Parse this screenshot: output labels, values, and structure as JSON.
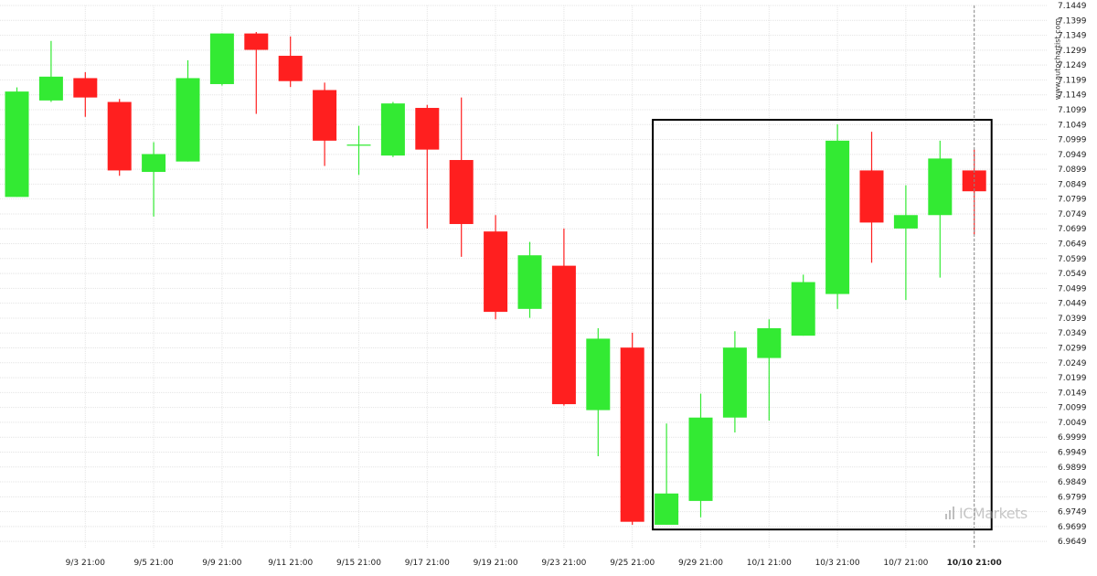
{
  "watermark": "www.autochartist.com",
  "logo_text": "ICMarkets",
  "colors": {
    "bull": "#33ea33",
    "bear": "#ff1f1f",
    "grid": "#e4e4e4",
    "box": "#000000"
  },
  "chart_data": {
    "type": "candlestick",
    "title": "",
    "xlabel": "",
    "ylabel": "",
    "ylim": [
      6.9625,
      7.1449
    ],
    "grid": true,
    "y_ticks": [
      "7.1449",
      "7.1399",
      "7.1349",
      "7.1299",
      "7.1249",
      "7.1199",
      "7.1149",
      "7.1099",
      "7.1049",
      "7.0999",
      "7.0949",
      "7.0899",
      "7.0849",
      "7.0799",
      "7.0749",
      "7.0699",
      "7.0649",
      "7.0599",
      "7.0549",
      "7.0499",
      "7.0449",
      "7.0399",
      "7.0349",
      "7.0299",
      "7.0249",
      "7.0199",
      "7.0149",
      "7.0099",
      "7.0049",
      "6.9999",
      "6.9949",
      "6.9899",
      "6.9849",
      "6.9799",
      "6.9749",
      "6.9699",
      "6.9649"
    ],
    "x_ticks": [
      {
        "label": "9/3 21:00",
        "index": 2
      },
      {
        "label": "9/5 21:00",
        "index": 4
      },
      {
        "label": "9/9 21:00",
        "index": 6
      },
      {
        "label": "9/11 21:00",
        "index": 8
      },
      {
        "label": "9/15 21:00",
        "index": 10
      },
      {
        "label": "9/17 21:00",
        "index": 12
      },
      {
        "label": "9/19 21:00",
        "index": 14
      },
      {
        "label": "9/23 21:00",
        "index": 16
      },
      {
        "label": "9/25 21:00",
        "index": 18
      },
      {
        "label": "9/29 21:00",
        "index": 20
      },
      {
        "label": "10/1 21:00",
        "index": 22
      },
      {
        "label": "10/3 21:00",
        "index": 24
      },
      {
        "label": "10/7 21:00",
        "index": 26
      },
      {
        "label": "10/10 21:00",
        "index": 28,
        "bold": true
      }
    ],
    "candles": [
      {
        "open": 7.0806,
        "high": 7.1174,
        "low": 7.0806,
        "close": 7.116
      },
      {
        "open": 7.113,
        "high": 7.133,
        "low": 7.1125,
        "close": 7.121
      },
      {
        "open": 7.1205,
        "high": 7.1225,
        "low": 7.1075,
        "close": 7.114
      },
      {
        "open": 7.1125,
        "high": 7.1135,
        "low": 7.0877,
        "close": 7.0895
      },
      {
        "open": 7.089,
        "high": 7.099,
        "low": 7.074,
        "close": 7.095
      },
      {
        "open": 7.0925,
        "high": 7.1265,
        "low": 7.0925,
        "close": 7.1205
      },
      {
        "open": 7.1185,
        "high": 7.1355,
        "low": 7.118,
        "close": 7.1355
      },
      {
        "open": 7.1355,
        "high": 7.136,
        "low": 7.1085,
        "close": 7.13
      },
      {
        "open": 7.128,
        "high": 7.1345,
        "low": 7.1175,
        "close": 7.1195
      },
      {
        "open": 7.1165,
        "high": 7.119,
        "low": 7.091,
        "close": 7.0995
      },
      {
        "open": 7.098,
        "high": 7.1045,
        "low": 7.088,
        "close": 7.098
      },
      {
        "open": 7.0945,
        "high": 7.1125,
        "low": 7.094,
        "close": 7.112
      },
      {
        "open": 7.1105,
        "high": 7.1115,
        "low": 7.07,
        "close": 7.0965
      },
      {
        "open": 7.093,
        "high": 7.114,
        "low": 7.0605,
        "close": 7.0715
      },
      {
        "open": 7.069,
        "high": 7.0745,
        "low": 7.0395,
        "close": 7.042
      },
      {
        "open": 7.043,
        "high": 7.0655,
        "low": 7.04,
        "close": 7.061
      },
      {
        "open": 7.0575,
        "high": 7.07,
        "low": 7.0105,
        "close": 7.011
      },
      {
        "open": 7.009,
        "high": 7.0365,
        "low": 6.9935,
        "close": 7.033
      },
      {
        "open": 7.03,
        "high": 7.035,
        "low": 6.9705,
        "close": 6.9715
      },
      {
        "open": 6.9705,
        "high": 7.0045,
        "low": 6.9705,
        "close": 6.981
      },
      {
        "open": 6.9785,
        "high": 7.0145,
        "low": 6.973,
        "close": 7.0065
      },
      {
        "open": 7.0065,
        "high": 7.0355,
        "low": 7.0015,
        "close": 7.03
      },
      {
        "open": 7.0265,
        "high": 7.0395,
        "low": 7.0055,
        "close": 7.0365
      },
      {
        "open": 7.034,
        "high": 7.0545,
        "low": 7.034,
        "close": 7.052
      },
      {
        "open": 7.048,
        "high": 7.105,
        "low": 7.043,
        "close": 7.0995
      },
      {
        "open": 7.0895,
        "high": 7.1025,
        "low": 7.0585,
        "close": 7.072
      },
      {
        "open": 7.07,
        "high": 7.0845,
        "low": 7.046,
        "close": 7.0745
      },
      {
        "open": 7.0745,
        "high": 7.0995,
        "low": 7.0535,
        "close": 7.0935
      },
      {
        "open": 7.0895,
        "high": 7.0965,
        "low": 7.068,
        "close": 7.0825
      }
    ],
    "pattern_box": {
      "start_index": 19,
      "end_index": 28,
      "high": 7.1065,
      "low": 6.9689
    },
    "current_time_index": 28
  }
}
